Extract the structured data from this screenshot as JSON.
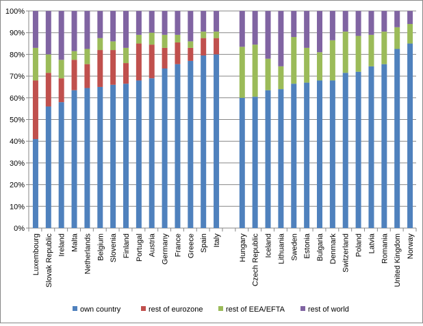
{
  "chart_data": {
    "type": "bar",
    "stacked": true,
    "ylim": [
      0,
      100
    ],
    "ytick_labels": [
      "0%",
      "10%",
      "20%",
      "30%",
      "40%",
      "50%",
      "60%",
      "70%",
      "80%",
      "90%",
      "100%"
    ],
    "grid": true,
    "legend_position": "bottom",
    "groups": [
      [
        "Luxembourg",
        "Slovak Republic",
        "Ireland",
        "Malta",
        "Netherlands",
        "Belgium",
        "Slovenia",
        "Finland",
        "Portugal",
        "Austria",
        "Germany",
        "France",
        "Greece",
        "Spain",
        "Italy"
      ],
      [
        "Hungary",
        "Czech Republic",
        "Iceland",
        "Lithuania",
        "Sweden",
        "Estonia",
        "Bulgaria",
        "Denmark",
        "Switzerland",
        "Poland",
        "Latvia",
        "Romania",
        "United Kingdom",
        "Norway"
      ]
    ],
    "categories": [
      "Luxembourg",
      "Slovak Republic",
      "Ireland",
      "Malta",
      "Netherlands",
      "Belgium",
      "Slovenia",
      "Finland",
      "Portugal",
      "Austria",
      "Germany",
      "France",
      "Greece",
      "Spain",
      "Italy",
      "Hungary",
      "Czech Republic",
      "Iceland",
      "Lithuania",
      "Sweden",
      "Estonia",
      "Bulgaria",
      "Denmark",
      "Switzerland",
      "Poland",
      "Latvia",
      "Romania",
      "United Kingdom",
      "Norway"
    ],
    "series": [
      {
        "name": "own country",
        "color": "#4f81bd",
        "values": [
          41,
          56,
          58,
          63.5,
          64.5,
          65,
          66,
          66.5,
          68,
          69,
          73.5,
          75.5,
          77,
          79.5,
          80,
          60,
          60.5,
          63.5,
          64,
          66.5,
          67,
          68,
          68,
          71.5,
          72,
          74.5,
          75.5,
          82.5,
          85
        ]
      },
      {
        "name": "rest of eurozone",
        "color": "#c0504d",
        "values": [
          27,
          15.5,
          11,
          14,
          11,
          17,
          16,
          9.5,
          17,
          15.5,
          9.5,
          10,
          6,
          8,
          7.5,
          0,
          0,
          0,
          0,
          0,
          0,
          0,
          0,
          0,
          0,
          0,
          0,
          0,
          0
        ]
      },
      {
        "name": "rest of EEA/EFTA",
        "color": "#9bbb59",
        "values": [
          15,
          8.5,
          8.5,
          4,
          7,
          5.5,
          4,
          7,
          4,
          5.5,
          6,
          3.5,
          3,
          3,
          3,
          23.5,
          24,
          14.5,
          10.5,
          21.5,
          16,
          13,
          18.5,
          19,
          16.5,
          14.5,
          15,
          10,
          9
        ]
      },
      {
        "name": "rest of world",
        "color": "#8064a2",
        "values": [
          17,
          20,
          22.5,
          18.5,
          17.5,
          12.5,
          14,
          17,
          11,
          10,
          11,
          11,
          14,
          9.5,
          9.5,
          16.5,
          15.5,
          22,
          25.5,
          12,
          17,
          19,
          13.5,
          9.5,
          11.5,
          11,
          9.5,
          7.5,
          6
        ]
      }
    ]
  }
}
